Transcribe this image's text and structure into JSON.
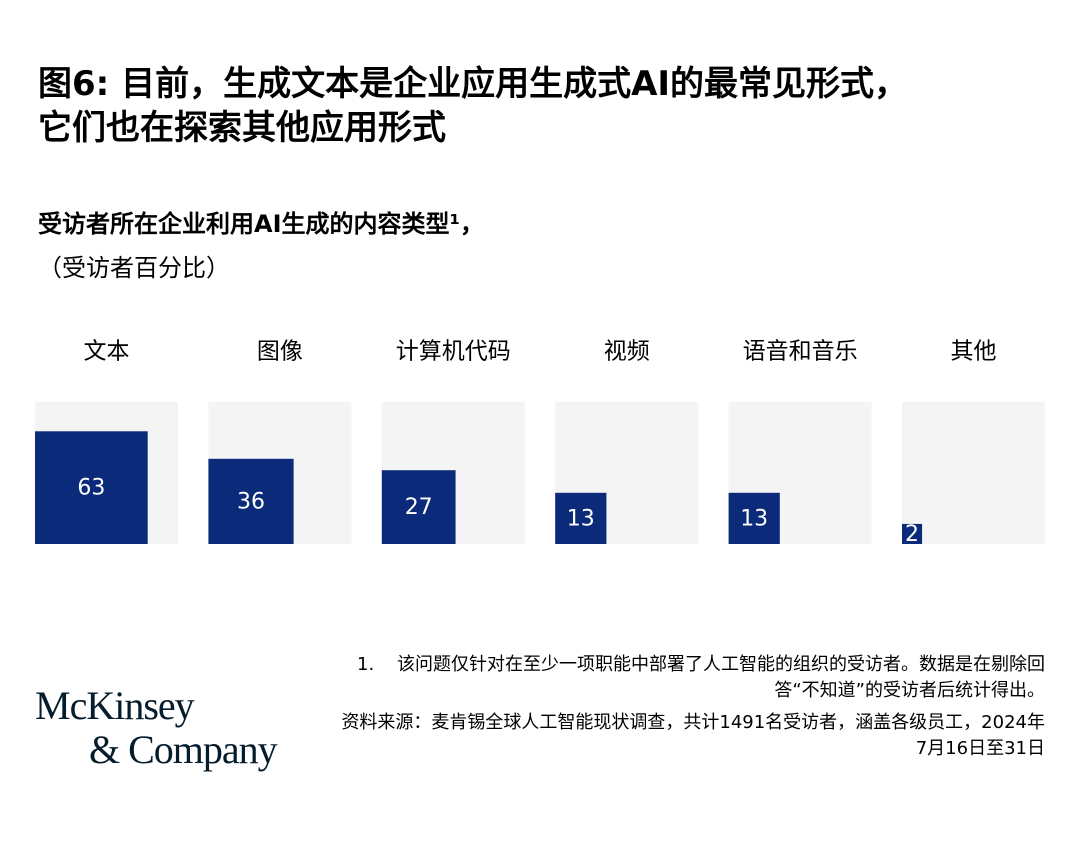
{
  "chart_data": {
    "type": "square",
    "title": [
      "图6: 目前，生成文本是企业应用生成式AI的最常见形式，",
      "它们也在探索其他应用形式"
    ],
    "subtitle": "受访者所在企业利用AI生成的内容类型¹，",
    "unit": "（受访者百分比）",
    "categories": [
      "文本",
      "图像",
      "计算机代码",
      "视频",
      "语音和音乐",
      "其他"
    ],
    "values": [
      63,
      36,
      27,
      13,
      13,
      2
    ],
    "ylim": [
      0,
      100
    ],
    "color": "#0b2a7a",
    "background_color": "#f4f4f4",
    "footnote_number": "1.",
    "footnote": "该问题仅针对在至少一项职能中部署了人工智能的组织的受访者。数据是在剔除回答“不知道”的受访者后统计得出。",
    "source": "资料来源：麦肯锡全球人工智能现状调查，共计1491名受访者，涵盖各级员工，2024年7月16日至31日",
    "logo": [
      "McKinsey",
      "& Company"
    ]
  }
}
